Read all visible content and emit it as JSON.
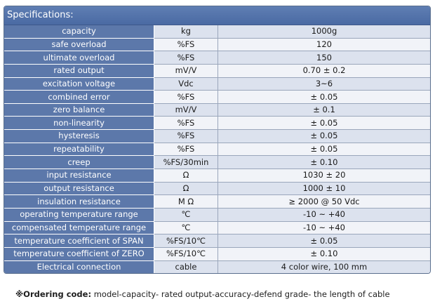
{
  "header": {
    "title": "Specifications:"
  },
  "rows": [
    {
      "param": "capacity",
      "unit": "kg",
      "value": "1000g"
    },
    {
      "param": "safe overload",
      "unit": "%FS",
      "value": "120"
    },
    {
      "param": "ultimate overload",
      "unit": "%FS",
      "value": "150"
    },
    {
      "param": "rated output",
      "unit": "mV/V",
      "value": "0.70 ± 0.2"
    },
    {
      "param": "excitation voltage",
      "unit": "Vdc",
      "value": "3~6"
    },
    {
      "param": "combined error",
      "unit": "%FS",
      "value": "± 0.05"
    },
    {
      "param": "zero balance",
      "unit": "mV/V",
      "value": "± 0.1"
    },
    {
      "param": "non-linearity",
      "unit": "%FS",
      "value": "± 0.05"
    },
    {
      "param": "hysteresis",
      "unit": "%FS",
      "value": "± 0.05"
    },
    {
      "param": "repeatability",
      "unit": "%FS",
      "value": "± 0.05"
    },
    {
      "param": "creep",
      "unit": "%FS/30min",
      "value": "± 0.10"
    },
    {
      "param": "input resistance",
      "unit": "Ω",
      "value": "1030 ± 20"
    },
    {
      "param": "output resistance",
      "unit": "Ω",
      "value": "1000 ± 10"
    },
    {
      "param": "insulation resistance",
      "unit": "M Ω",
      "value": "≥ 2000 @ 50 Vdc"
    },
    {
      "param": "operating temperature range",
      "unit": "℃",
      "value": "-10 ~ +40"
    },
    {
      "param": "compensated temperature range",
      "unit": "℃",
      "value": "-10 ~ +40"
    },
    {
      "param": "temperature coefficient of SPAN",
      "unit": "%FS/10℃",
      "value": "± 0.05"
    },
    {
      "param": "temperature coefficient of ZERO",
      "unit": "%FS/10℃",
      "value": "± 0.10"
    },
    {
      "param": "Electrical connection",
      "unit": "cable",
      "value": "4 color wire,  100 mm"
    }
  ],
  "ordering": {
    "label": "※Ordering code:",
    "text": " model-capacity- rated output-accuracy-defend grade- the length of cable"
  }
}
